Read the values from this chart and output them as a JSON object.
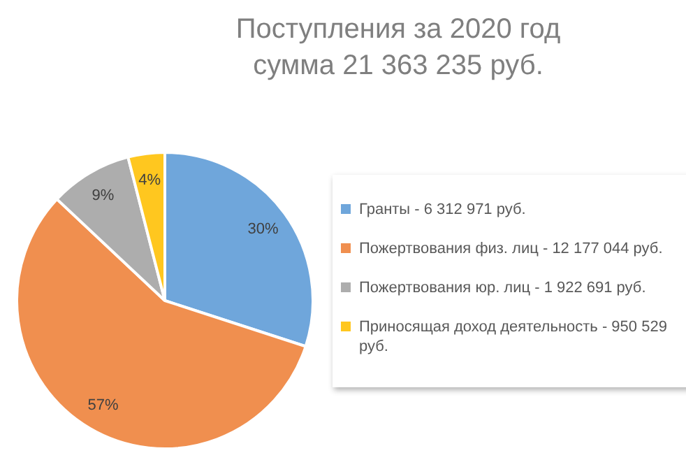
{
  "chart_data": {
    "type": "pie",
    "title": "Поступления за 2020 год",
    "subtitle": "сумма 21 363 235 руб.",
    "categories": [
      "Гранты - 6 312 971 руб.",
      "Пожертвования физ. лиц - 12 177 044 руб.",
      "Пожертвования юр. лиц - 1 922 691 руб.",
      "Приносящая доход деятельность - 950 529 руб."
    ],
    "values": [
      30,
      57,
      9,
      4
    ],
    "value_labels": [
      "30%",
      "57%",
      "9%",
      "4%"
    ],
    "colors": [
      "#6fa6db",
      "#f08f4f",
      "#adadad",
      "#ffc71f"
    ],
    "legend": "right"
  }
}
